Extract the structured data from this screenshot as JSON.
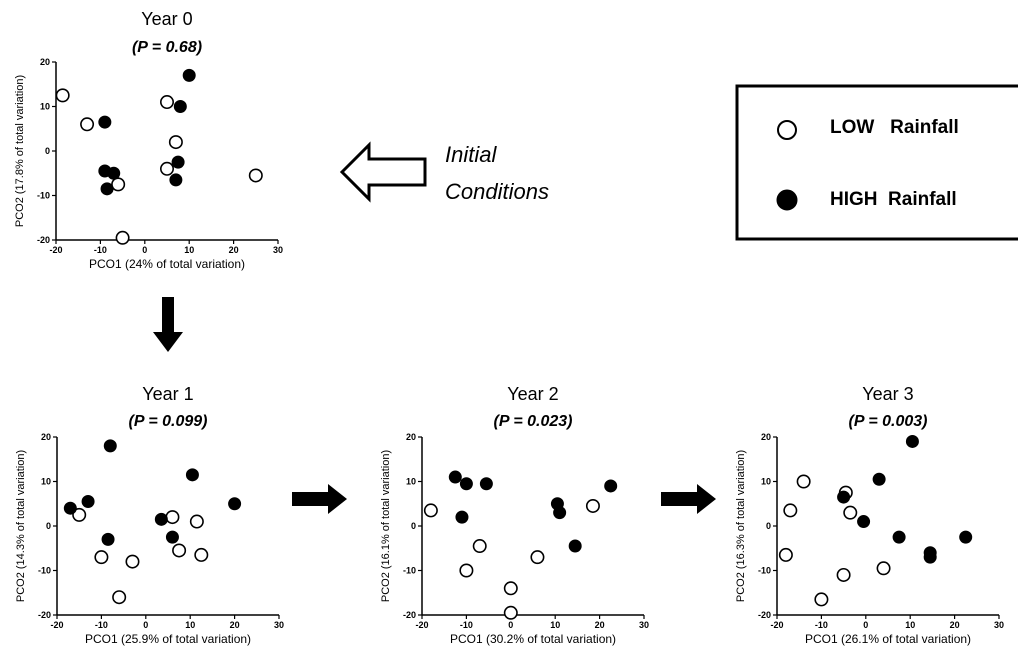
{
  "colors": {
    "hollow_fill": "#ffffff",
    "solid_fill": "#000000",
    "stroke": "#000000"
  },
  "annotation": {
    "line1": "Initial",
    "line2": "Conditions",
    "arrow_icon": "hollow-left-arrow"
  },
  "legend": {
    "placement": "top-right",
    "items": [
      {
        "label": "LOW   Rainfall",
        "marker": "hollow-circle",
        "series": "low"
      },
      {
        "label": "HIGH  Rainfall",
        "marker": "filled-circle",
        "series": "high"
      }
    ]
  },
  "arrows": [
    "down-arrow",
    "right-arrow",
    "right-arrow"
  ],
  "chart_data": [
    {
      "type": "scatter",
      "title": "Year 0",
      "subtitle": "(P = 0.68)",
      "xlabel": "PCO1 (24% of total variation)",
      "ylabel": "PCO2 (17.8% of total variation)",
      "xlim": [
        -20,
        30
      ],
      "ylim": [
        -20,
        20
      ],
      "xticks": [
        "-20",
        "-10",
        "0",
        "10",
        "20",
        "30"
      ],
      "yticks": [
        "-20",
        "-10",
        "0",
        "10",
        "20"
      ],
      "grid": false,
      "series": [
        {
          "key": "low",
          "points": [
            [
              -18.5,
              12.5
            ],
            [
              -13,
              6
            ],
            [
              5,
              11
            ],
            [
              7,
              2
            ],
            [
              5,
              -4
            ],
            [
              -6,
              -7.5
            ],
            [
              -5,
              -19.5
            ],
            [
              25,
              -5.5
            ]
          ]
        },
        {
          "key": "high",
          "points": [
            [
              10,
              17
            ],
            [
              8,
              10
            ],
            [
              -9,
              6.5
            ],
            [
              -9,
              -4.5
            ],
            [
              -7,
              -5
            ],
            [
              -8.5,
              -8.5
            ],
            [
              7.5,
              -2.5
            ],
            [
              7,
              -6.5
            ]
          ]
        }
      ]
    },
    {
      "type": "scatter",
      "title": "Year 1",
      "subtitle": "(P = 0.099)",
      "xlabel": "PCO1 (25.9% of total variation)",
      "ylabel": "PCO2 (14.3% of total variation)",
      "xlim": [
        -20,
        30
      ],
      "ylim": [
        -20,
        20
      ],
      "xticks": [
        "-20",
        "-10",
        "0",
        "10",
        "20",
        "30"
      ],
      "yticks": [
        "-20",
        "-10",
        "0",
        "10",
        "20"
      ],
      "grid": false,
      "series": [
        {
          "key": "low",
          "points": [
            [
              -15,
              2.5
            ],
            [
              -10,
              -7
            ],
            [
              -3,
              -8
            ],
            [
              -6,
              -16
            ],
            [
              6,
              2
            ],
            [
              11.5,
              1
            ],
            [
              7.5,
              -5.5
            ],
            [
              12.5,
              -6.5
            ]
          ]
        },
        {
          "key": "high",
          "points": [
            [
              -8,
              18
            ],
            [
              10.5,
              11.5
            ],
            [
              20,
              5
            ],
            [
              -17,
              4
            ],
            [
              -13,
              5.5
            ],
            [
              -8.5,
              -3
            ],
            [
              3.5,
              1.5
            ],
            [
              6,
              -2.5
            ]
          ]
        }
      ]
    },
    {
      "type": "scatter",
      "title": "Year 2",
      "subtitle": "(P = 0.023)",
      "xlabel": "PCO1 (30.2% of total variation)",
      "ylabel": "PCO2 (16.1% of total variation)",
      "xlim": [
        -20,
        30
      ],
      "ylim": [
        -20,
        20
      ],
      "xticks": [
        "-20",
        "-10",
        "0",
        "10",
        "20",
        "30"
      ],
      "yticks": [
        "-20",
        "-10",
        "0",
        "10",
        "20"
      ],
      "grid": false,
      "series": [
        {
          "key": "low",
          "points": [
            [
              -18,
              3.5
            ],
            [
              -7,
              -4.5
            ],
            [
              -10,
              -10
            ],
            [
              0,
              -14
            ],
            [
              0,
              -19.5
            ],
            [
              6,
              -7
            ],
            [
              18.5,
              4.5
            ]
          ]
        },
        {
          "key": "high",
          "points": [
            [
              -12.5,
              11
            ],
            [
              -10,
              9.5
            ],
            [
              -5.5,
              9.5
            ],
            [
              -11,
              2
            ],
            [
              10.5,
              5
            ],
            [
              11,
              3
            ],
            [
              22.5,
              9
            ],
            [
              14.5,
              -4.5
            ]
          ]
        }
      ]
    },
    {
      "type": "scatter",
      "title": "Year 3",
      "subtitle": "(P = 0.003)",
      "xlabel": "PCO1 (26.1% of total variation)",
      "ylabel": "PCO2 (16.3% of total variation)",
      "xlim": [
        -20,
        30
      ],
      "ylim": [
        -20,
        20
      ],
      "xticks": [
        "-20",
        "-10",
        "0",
        "10",
        "20",
        "30"
      ],
      "yticks": [
        "-20",
        "-10",
        "0",
        "10",
        "20"
      ],
      "grid": false,
      "series": [
        {
          "key": "low",
          "points": [
            [
              -14,
              10
            ],
            [
              -17,
              3.5
            ],
            [
              -18,
              -6.5
            ],
            [
              -10,
              -16.5
            ],
            [
              -5,
              -11
            ],
            [
              -4.5,
              7.5
            ],
            [
              -3.5,
              3
            ],
            [
              4,
              -9.5
            ]
          ]
        },
        {
          "key": "high",
          "points": [
            [
              10.5,
              19
            ],
            [
              3,
              10.5
            ],
            [
              -5,
              6.5
            ],
            [
              -0.5,
              1
            ],
            [
              7.5,
              -2.5
            ],
            [
              14.5,
              -6
            ],
            [
              14.5,
              -7
            ],
            [
              22.5,
              -2.5
            ]
          ]
        }
      ]
    }
  ]
}
